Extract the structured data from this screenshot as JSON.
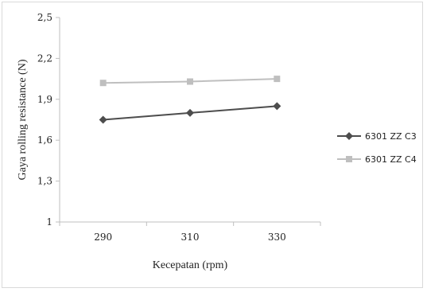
{
  "chart_data": {
    "type": "line",
    "title": "",
    "xlabel": "Kecepatan (rpm)",
    "ylabel": "Gaya rolling resistance (N)",
    "x": [
      290,
      310,
      330
    ],
    "x_tick_labels": [
      "290",
      "310",
      "330"
    ],
    "xlim": [
      280,
      340
    ],
    "ylim": [
      1,
      2.5
    ],
    "y_ticks": [
      1,
      1.3,
      1.6,
      1.9,
      2.2,
      2.5
    ],
    "y_tick_labels": [
      "1",
      "1,3",
      "1,6",
      "1,9",
      "2,2",
      "2,5"
    ],
    "grid": false,
    "legend_position": "right",
    "series": [
      {
        "name": "6301 ZZ C3",
        "values": [
          1.75,
          1.8,
          1.85
        ],
        "color": "#4d4d4d",
        "marker": "diamond"
      },
      {
        "name": "6301 ZZ C4",
        "values": [
          2.02,
          2.03,
          2.05
        ],
        "color": "#bfbfbf",
        "marker": "square"
      }
    ]
  }
}
